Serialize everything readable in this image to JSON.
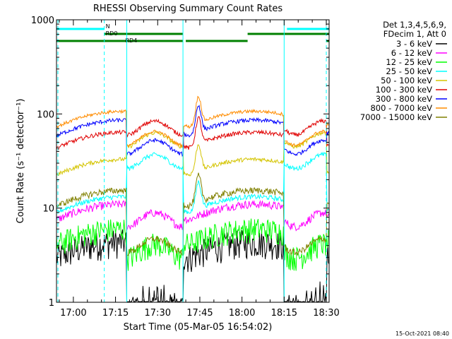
{
  "chart_data": {
    "type": "line",
    "title": "RHESSI Observing Summary Count Rates",
    "xlabel": "Start Time (05-Mar-05 16:54:02)",
    "ylabel": "Count Rate (s⁻¹ detector⁻¹)",
    "y_scale": "log",
    "ylim": [
      1,
      1000
    ],
    "y_ticks": [
      {
        "value": 1,
        "label": "1"
      },
      {
        "value": 10,
        "label": "10"
      },
      {
        "value": 100,
        "label": "100"
      },
      {
        "value": 1000,
        "label": "1000"
      }
    ],
    "xlim_minutes_after_start": [
      0,
      97
    ],
    "x_ticks": [
      {
        "minute": 6,
        "label": "17:00"
      },
      {
        "minute": 21,
        "label": "17:15"
      },
      {
        "minute": 36,
        "label": "17:30"
      },
      {
        "minute": 51,
        "label": "17:45"
      },
      {
        "minute": 66,
        "label": "18:00"
      },
      {
        "minute": 81,
        "label": "18:15"
      },
      {
        "minute": 96,
        "label": "18:30"
      }
    ],
    "legend_header": [
      "Det 1,3,4,5,6,9,",
      "FDecim 1, Att 0"
    ],
    "legend_position": "right",
    "series": [
      {
        "name": "3 - 6 keV",
        "color": "#000000",
        "day": 4,
        "night": 1.2,
        "noise": 0.35
      },
      {
        "name": "6 - 12 keV",
        "color": "#ff00ff",
        "day": 10,
        "night": 8.5,
        "noise": 0.1
      },
      {
        "name": "12 - 25 keV",
        "color": "#00ff00",
        "day": 5.5,
        "night": 4,
        "noise": 0.3
      },
      {
        "name": "25 - 50 keV",
        "color": "#00ffff",
        "day": 12,
        "night": 35,
        "noise": 0.06
      },
      {
        "name": "50 - 100 keV",
        "color": "#d4c400",
        "day": 30,
        "night": 60,
        "noise": 0.05
      },
      {
        "name": "100 - 300 keV",
        "color": "#e00000",
        "day": 58,
        "night": 80,
        "noise": 0.05
      },
      {
        "name": "300 - 800 keV",
        "color": "#0000ff",
        "day": 78,
        "night": 50,
        "noise": 0.05
      },
      {
        "name": "800 - 7000 keV",
        "color": "#ff8c00",
        "day": 97,
        "night": 62,
        "noise": 0.04
      },
      {
        "name": "7000 - 15000 keV",
        "color": "#808000",
        "day": 14,
        "night": 4.5,
        "noise": 0.08
      }
    ],
    "vertical_markers": [
      {
        "minute": 0.5,
        "style": "dashed",
        "color": "#00ffff"
      },
      {
        "minute": 17,
        "style": "dashed",
        "color": "#00ffff"
      },
      {
        "minute": 25,
        "style": "solid",
        "color": "#00ffff"
      },
      {
        "minute": 45,
        "style": "solid",
        "color": "#00ffff"
      },
      {
        "minute": 81,
        "style": "solid",
        "color": "#00ffff"
      },
      {
        "minute": 96,
        "style": "dashed",
        "color": "#00ffff"
      }
    ],
    "flag_bars": [
      {
        "label": "N",
        "color": "#00ffff",
        "level": 1,
        "segments": [
          [
            0,
            17
          ],
          [
            82,
            97
          ]
        ]
      },
      {
        "label": "RD0",
        "color": "#008000",
        "level": 2,
        "segments": [
          [
            17,
            45
          ],
          [
            68,
            97
          ]
        ]
      },
      {
        "label": "RD4",
        "color": "#008000",
        "level": 3,
        "segments": [
          [
            0,
            45
          ],
          [
            46,
            68
          ],
          [
            96,
            97
          ]
        ]
      }
    ],
    "timestamp": "15-Oct-2021 08:40"
  }
}
